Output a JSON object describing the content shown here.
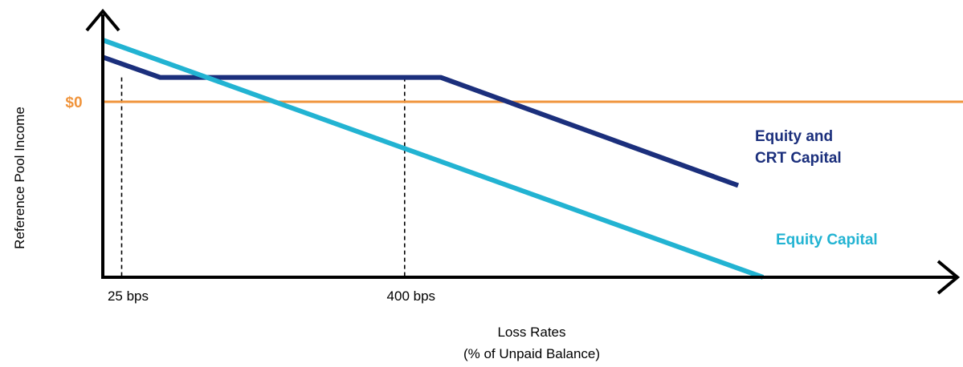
{
  "chart_data": {
    "type": "line",
    "title": "",
    "xlabel": [
      "Loss Rates",
      "(% of Unpaid Balance)"
    ],
    "ylabel": "Reference Pool Income",
    "x_ticks": [
      {
        "label": "25 bps",
        "value": 25
      },
      {
        "label": "400 bps",
        "value": 400
      }
    ],
    "y_ticks": [
      {
        "label": "$0",
        "value": 0
      }
    ],
    "xlim": [
      0,
      1140
    ],
    "ylim": [
      -216,
      76
    ],
    "grid": false,
    "reference_lines": [
      {
        "axis": "y",
        "value": 0,
        "label": "$0",
        "color": "#F0943C"
      }
    ],
    "guide_lines": [
      {
        "axis": "x",
        "value": 25,
        "from_y": -216,
        "to_y": 30
      },
      {
        "axis": "x",
        "value": 400,
        "from_y": -216,
        "to_y": 30
      }
    ],
    "series": [
      {
        "name": "Equity and CRT Capital",
        "color": "#1B2F7C",
        "points": [
          [
            0,
            55
          ],
          [
            76,
            30
          ],
          [
            448,
            30
          ],
          [
            842,
            -103
          ]
        ]
      },
      {
        "name": "Equity Capital",
        "color": "#22B3D2",
        "points": [
          [
            0,
            76
          ],
          [
            875,
            -216
          ]
        ]
      }
    ]
  }
}
